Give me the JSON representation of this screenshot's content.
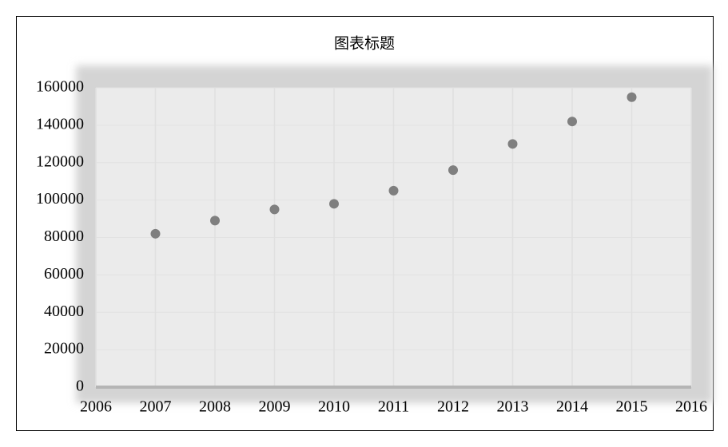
{
  "chart_data": {
    "type": "scatter",
    "title": "图表标题",
    "x": [
      2007,
      2008,
      2009,
      2010,
      2011,
      2012,
      2013,
      2014,
      2015
    ],
    "values": [
      82000,
      89000,
      95000,
      98000,
      105000,
      116000,
      130000,
      142000,
      155000
    ],
    "color": "#7f7f7f",
    "xlim": [
      2006,
      2016
    ],
    "xticks": [
      2006,
      2007,
      2008,
      2009,
      2010,
      2011,
      2012,
      2013,
      2014,
      2015,
      2016
    ],
    "ylim": [
      0,
      160000
    ],
    "yticks": [
      0,
      20000,
      40000,
      60000,
      80000,
      100000,
      120000,
      140000,
      160000
    ],
    "grid": true
  }
}
